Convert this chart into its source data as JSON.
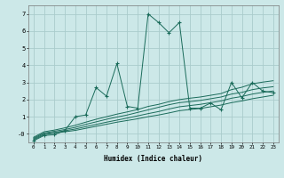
{
  "title": "",
  "xlabel": "Humidex (Indice chaleur)",
  "background_color": "#cce8e8",
  "grid_color": "#aacccc",
  "line_color": "#1a6b5a",
  "x_values": [
    0,
    1,
    2,
    3,
    4,
    5,
    6,
    7,
    8,
    9,
    10,
    11,
    12,
    13,
    14,
    15,
    16,
    17,
    18,
    19,
    20,
    21,
    22,
    23
  ],
  "main_line": [
    -0.4,
    -0.1,
    -0.05,
    0.2,
    1.0,
    1.1,
    2.7,
    2.2,
    4.1,
    1.6,
    1.5,
    7.0,
    6.5,
    5.9,
    6.5,
    1.5,
    1.5,
    1.8,
    1.4,
    3.0,
    2.1,
    3.0,
    2.5,
    2.4
  ],
  "smooth1": [
    -0.35,
    -0.05,
    0.05,
    0.12,
    0.2,
    0.32,
    0.44,
    0.56,
    0.68,
    0.78,
    0.88,
    1.0,
    1.1,
    1.22,
    1.35,
    1.42,
    1.48,
    1.58,
    1.68,
    1.82,
    1.92,
    2.05,
    2.15,
    2.25
  ],
  "smooth2": [
    -0.3,
    0.0,
    0.08,
    0.18,
    0.28,
    0.42,
    0.55,
    0.68,
    0.8,
    0.92,
    1.05,
    1.18,
    1.3,
    1.45,
    1.58,
    1.65,
    1.72,
    1.82,
    1.92,
    2.08,
    2.18,
    2.32,
    2.42,
    2.5
  ],
  "smooth3": [
    -0.25,
    0.05,
    0.15,
    0.25,
    0.38,
    0.55,
    0.7,
    0.85,
    0.98,
    1.1,
    1.25,
    1.4,
    1.55,
    1.7,
    1.82,
    1.88,
    1.95,
    2.05,
    2.15,
    2.32,
    2.42,
    2.58,
    2.68,
    2.75
  ],
  "smooth4": [
    -0.2,
    0.12,
    0.22,
    0.35,
    0.5,
    0.68,
    0.85,
    1.0,
    1.15,
    1.28,
    1.42,
    1.6,
    1.72,
    1.88,
    2.0,
    2.08,
    2.15,
    2.25,
    2.35,
    2.58,
    2.72,
    2.92,
    3.02,
    3.1
  ],
  "ylim": [
    -0.5,
    7.5
  ],
  "xlim": [
    -0.5,
    23.5
  ],
  "yticks": [
    0,
    1,
    2,
    3,
    4,
    5,
    6,
    7
  ],
  "xticks": [
    0,
    1,
    2,
    3,
    4,
    5,
    6,
    7,
    8,
    9,
    10,
    11,
    12,
    13,
    14,
    15,
    16,
    17,
    18,
    19,
    20,
    21,
    22,
    23
  ],
  "figsize": [
    3.2,
    2.0
  ],
  "dpi": 100
}
